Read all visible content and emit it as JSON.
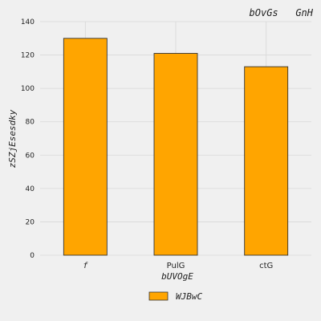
{
  "chart_data": {
    "type": "bar",
    "title": "bOvGs   GnH",
    "xlabel": "bUVOgE",
    "ylabel": "zSZjEsesdky",
    "categories": [
      "f",
      "PulG",
      "ctG"
    ],
    "series": [
      {
        "name": "WJBwC",
        "values": [
          130,
          121,
          113
        ]
      }
    ],
    "ylim": [
      0,
      140
    ],
    "yticks": [
      0,
      20,
      40,
      60,
      80,
      100,
      120,
      140
    ],
    "grid": true,
    "legend": "bottom-center",
    "colors": {
      "bar": "#ffa500",
      "bar_edge": "#333333",
      "background": "#f0f0f0",
      "grid": "#d8d8d8"
    }
  }
}
